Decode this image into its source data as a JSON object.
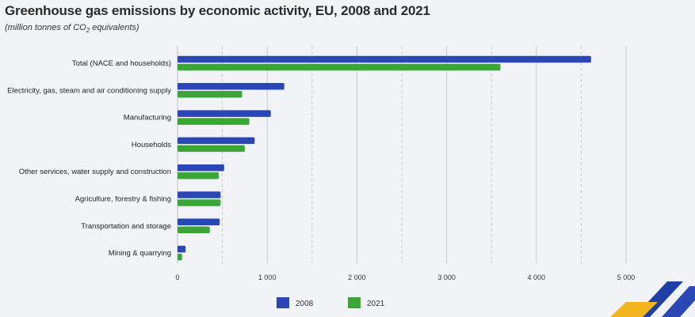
{
  "title": "Greenhouse gas emissions by economic activity, EU, 2008 and 2021",
  "subtitle_prefix": "(million tonnes of CO",
  "subtitle_sub": "2",
  "subtitle_suffix": " equivalents)",
  "colors": {
    "series_2008": "#2b47b5",
    "series_2021": "#3aa635",
    "grid": "#c8c8c8",
    "background": "#f2f3f6"
  },
  "chart_data": {
    "type": "bar",
    "orientation": "horizontal",
    "title": "Greenhouse gas emissions by economic activity, EU, 2008 and 2021",
    "xlabel": "",
    "ylabel": "",
    "xlim": [
      0,
      5000
    ],
    "xticks": [
      0,
      1000,
      2000,
      3000,
      4000,
      5000
    ],
    "xtick_labels": [
      "0",
      "1 000",
      "2 000",
      "3 000",
      "4 000",
      "5 000"
    ],
    "categories": [
      "Total (NACE and households)",
      "Electricity, gas, steam and air conditioning supply",
      "Manufacturing",
      "Households",
      "Other services, water supply and construction",
      "Agriculture, forestry & fishing",
      "Transportation and storage",
      "Mining & quarrying"
    ],
    "series": [
      {
        "name": "2008",
        "color": "#2b47b5",
        "values": [
          4610,
          1190,
          1040,
          860,
          520,
          480,
          470,
          90
        ]
      },
      {
        "name": "2021",
        "color": "#3aa635",
        "values": [
          3600,
          720,
          800,
          750,
          460,
          480,
          360,
          50
        ]
      }
    ],
    "legend_position": "bottom-center"
  }
}
